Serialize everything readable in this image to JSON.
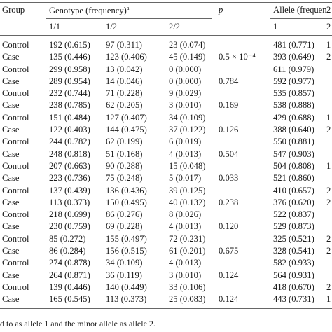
{
  "header": {
    "group": "Group",
    "genotype": "Genotype (frequency)",
    "genotype_sup": "a",
    "p": "p",
    "allele": "Allele (frequen",
    "allele_cut": "2"
  },
  "subheader": {
    "g11": "1/1",
    "g12": "1/2",
    "g22": "2/2",
    "a1": "1",
    "a2": "2"
  },
  "rows": [
    {
      "group": "Control",
      "g11": "192 (0.615)",
      "g12": "97 (0.311)",
      "g22": "23 (0.074)",
      "p": "",
      "a1": "481 (0.771)",
      "a2": "1"
    },
    {
      "group": "Case",
      "g11": "135 (0.446)",
      "g12": "123 (0.406)",
      "g22": "45 (0.149)",
      "p": "0.5 × 10⁻⁴",
      "a1": "393 (0.649)",
      "a2": "2"
    },
    {
      "group": "Control",
      "g11": "299 (0.958)",
      "g12": "13 (0.042)",
      "g22": "0 (0.000)",
      "p": "",
      "a1": "611 (0.979)",
      "a2": ""
    },
    {
      "group": "Case",
      "g11": "289 (0.954)",
      "g12": "14 (0.046)",
      "g22": "0 (0.000)",
      "p": "0.784",
      "a1": "592 (0.977)",
      "a2": ""
    },
    {
      "group": "Control",
      "g11": "232 (0.744)",
      "g12": "71 (0.228)",
      "g22": "9 (0.029)",
      "p": "",
      "a1": "535 (0.857)",
      "a2": ""
    },
    {
      "group": "Case",
      "g11": "238 (0.785)",
      "g12": "62 (0.205)",
      "g22": "3 (0.010)",
      "p": "0.169",
      "a1": "538 (0.888)",
      "a2": ""
    },
    {
      "group": "Control",
      "g11": "151 (0.484)",
      "g12": "127 (0.407)",
      "g22": "34 (0.109)",
      "p": "",
      "a1": "429 (0.688)",
      "a2": "1"
    },
    {
      "group": "Case",
      "g11": "122 (0.403)",
      "g12": "144 (0.475)",
      "g22": "37 (0.122)",
      "p": "0.126",
      "a1": "388 (0.640)",
      "a2": "2"
    },
    {
      "group": "Control",
      "g11": "244 (0.782)",
      "g12": "62 (0.199)",
      "g22": "6 (0.019)",
      "p": "",
      "a1": "550 (0.881)",
      "a2": ""
    },
    {
      "group": "Case",
      "g11": "248 (0.818)",
      "g12": "51 (0.168)",
      "g22": "4 (0.013)",
      "p": "0.504",
      "a1": "547 (0.903)",
      "a2": ""
    },
    {
      "group": "Control",
      "g11": "207 (0.663)",
      "g12": "90 (0.288)",
      "g22": "15 (0.048)",
      "p": "",
      "a1": "504 (0.808)",
      "a2": "1"
    },
    {
      "group": "Case",
      "g11": "223 (0.736)",
      "g12": "75 (0.248)",
      "g22": "5 (0.017)",
      "p": "0.033",
      "a1": "521 (0.860)",
      "a2": ""
    },
    {
      "group": "Control",
      "g11": "137 (0.439)",
      "g12": "136 (0.436)",
      "g22": "39 (0.125)",
      "p": "",
      "a1": "410 (0.657)",
      "a2": "2"
    },
    {
      "group": "Case",
      "g11": "113 (0.373)",
      "g12": "150 (0.495)",
      "g22": "40 (0.132)",
      "p": "0.238",
      "a1": "376 (0.620)",
      "a2": "2"
    },
    {
      "group": "Control",
      "g11": "218 (0.699)",
      "g12": "86 (0.276)",
      "g22": "8 (0.026)",
      "p": "",
      "a1": "522 (0.837)",
      "a2": ""
    },
    {
      "group": "Case",
      "g11": "230 (0.759)",
      "g12": "69 (0.228)",
      "g22": "4 (0.013)",
      "p": "0.120",
      "a1": "529 (0.873)",
      "a2": ""
    },
    {
      "group": "Control",
      "g11": "85 (0.272)",
      "g12": "155 (0.497)",
      "g22": "72 (0.231)",
      "p": "",
      "a1": "325 (0.521)",
      "a2": "2"
    },
    {
      "group": "Case",
      "g11": "86 (0.284)",
      "g12": "156 (0.515)",
      "g22": "61 (0.201)",
      "p": "0.675",
      "a1": "328 (0.541)",
      "a2": "2"
    },
    {
      "group": "Control",
      "g11": "274 (0.878)",
      "g12": "34 (0.109)",
      "g22": "4 (0.013)",
      "p": "",
      "a1": "582 (0.933)",
      "a2": ""
    },
    {
      "group": "Case",
      "g11": "264 (0.871)",
      "g12": "36 (0.119)",
      "g22": "3 (0.010)",
      "p": "0.124",
      "a1": "564 (0.931)",
      "a2": ""
    },
    {
      "group": "Control",
      "g11": "139 (0.446)",
      "g12": "140 (0.449)",
      "g22": "33 (0.106)",
      "p": "",
      "a1": "418 (0.670)",
      "a2": "2"
    },
    {
      "group": "Case",
      "g11": "165 (0.545)",
      "g12": "113 (0.373)",
      "g22": "25 (0.083)",
      "p": "0.124",
      "a1": "443 (0.731)",
      "a2": "1"
    }
  ],
  "footnote": "d to as allele 1 and the minor allele as allele 2."
}
